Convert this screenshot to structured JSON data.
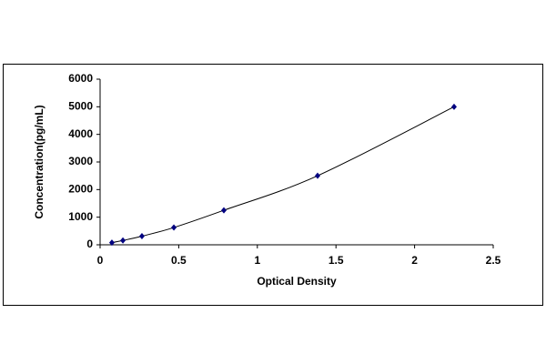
{
  "chart_data": {
    "type": "scatter",
    "x_label": "Optical Density",
    "y_label": "Concentration(pg/mL)",
    "x": [
      0.075,
      0.145,
      0.266,
      0.469,
      0.787,
      1.383,
      2.251
    ],
    "values": [
      78,
      156,
      312,
      625,
      1250,
      2500,
      5000
    ],
    "color": "#000080",
    "line_color": "#000000",
    "xlim": [
      0,
      2.5
    ],
    "xticks": [
      0,
      0.5,
      1,
      1.5,
      2,
      2.5
    ],
    "ylim": [
      0,
      6000
    ],
    "yticks": [
      0,
      1000,
      2000,
      3000,
      4000,
      5000,
      6000
    ],
    "grid": false
  }
}
